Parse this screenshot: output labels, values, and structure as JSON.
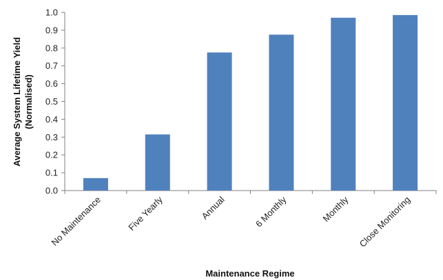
{
  "chart_data": {
    "type": "bar",
    "title": "",
    "xlabel": "Maintenance Regime",
    "ylabel_line1": "Average System Lifetime Yield",
    "ylabel_line2": "(Normalised)",
    "ylim": [
      0,
      1.0
    ],
    "yticks": [
      "0.0",
      "0.1",
      "0.2",
      "0.3",
      "0.4",
      "0.5",
      "0.6",
      "0.7",
      "0.8",
      "0.9",
      "1.0"
    ],
    "categories": [
      "No Maintenance",
      "Five Yearly",
      "Annual",
      "6 Monthly",
      "Monthly",
      "Close Monitoring"
    ],
    "values": [
      0.07,
      0.315,
      0.775,
      0.875,
      0.97,
      0.985
    ],
    "bar_color": "#4F81BD",
    "grid": false,
    "legend": "none"
  }
}
